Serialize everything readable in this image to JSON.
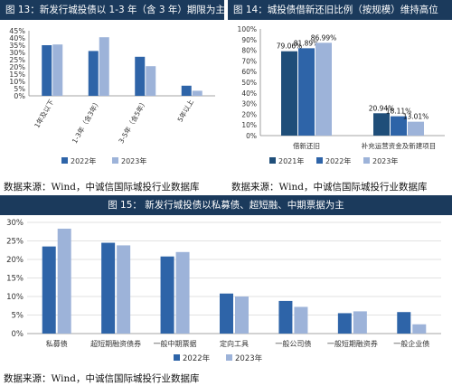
{
  "colors": {
    "header_bg": "#1b3a5c",
    "s2021": "#1f4e79",
    "s2022": "#2e64a8",
    "s2023": "#9db3d9"
  },
  "fig13": {
    "title": "图 13：新发行城投债以 1-3 年（含 3 年）期限为主",
    "source": "数据来源：Wind，中诚信国际城投行业数据库",
    "chart_data": {
      "type": "bar",
      "categories": [
        "1年及以下",
        "1-3年（含3年）",
        "3-5年（含5年）",
        "5年以上"
      ],
      "series": [
        {
          "name": "2022年",
          "values": [
            35,
            31,
            27,
            7
          ]
        },
        {
          "name": "2023年",
          "values": [
            35.5,
            40.5,
            20.5,
            3.5
          ]
        }
      ],
      "yticks": [
        "0%",
        "5%",
        "10%",
        "15%",
        "20%",
        "25%",
        "30%",
        "35%",
        "40%",
        "45%"
      ],
      "ylim": [
        0,
        45
      ],
      "legend_position": "bottom"
    }
  },
  "fig14": {
    "title": "图 14：城投债借新还旧比例（按规模）维持高位",
    "source": "数据来源：Wind，中诚信国际城投行业数据库",
    "chart_data": {
      "type": "bar",
      "categories": [
        "借新还旧",
        "补充运营资金及新建项目"
      ],
      "series": [
        {
          "name": "2021年",
          "values": [
            79.06,
            20.94
          ],
          "labels": [
            "79.06%",
            "20.94%"
          ]
        },
        {
          "name": "2022年",
          "values": [
            81.89,
            18.11
          ],
          "labels": [
            "81.89%",
            "18.11%"
          ]
        },
        {
          "name": "2023年",
          "values": [
            86.99,
            13.01
          ],
          "labels": [
            "86.99%",
            "13.01%"
          ]
        }
      ],
      "yticks": [
        "0%",
        "10%",
        "20%",
        "30%",
        "40%",
        "50%",
        "60%",
        "70%",
        "80%",
        "90%",
        "100%"
      ],
      "ylim": [
        0,
        100
      ],
      "legend_position": "bottom"
    }
  },
  "fig15": {
    "title": "图 15：  新发行城投债以私募债、超短融、中期票据为主",
    "source": "数据来源：Wind，中诚信国际城投行业数据库",
    "chart_data": {
      "type": "bar",
      "categories": [
        "私募债",
        "超短期融资债券",
        "一般中期票据",
        "定向工具",
        "一般公司债",
        "一般短期融资券",
        "一般企业债"
      ],
      "series": [
        {
          "name": "2022年",
          "values": [
            23.5,
            24.5,
            20.8,
            10.8,
            8.8,
            5.5,
            5.8
          ]
        },
        {
          "name": "2023年",
          "values": [
            28.3,
            23.8,
            22,
            10,
            7.2,
            6,
            2.5
          ]
        }
      ],
      "yticks": [
        "0%",
        "5%",
        "10%",
        "15%",
        "20%",
        "25%",
        "30%"
      ],
      "ylim": [
        0,
        30
      ],
      "legend_position": "bottom"
    }
  }
}
